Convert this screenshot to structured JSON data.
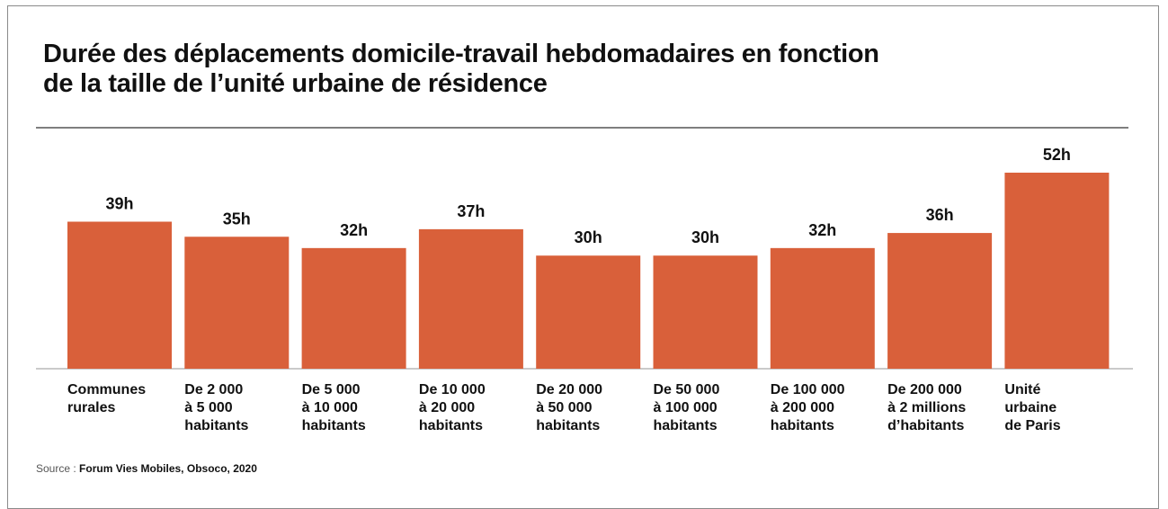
{
  "chart_data": {
    "type": "bar",
    "title": "Durée des déplacements domicile-travail hebdomadaires en fonction\nde la taille de l’unité urbaine de résidence",
    "categories": [
      "Communes\nrurales",
      "De 2 000\nà 5 000\nhabitants",
      "De 5 000\nà 10 000\nhabitants",
      "De 10 000\nà 20 000\nhabitants",
      "De 20 000\nà 50 000\nhabitants",
      "De 50 000\nà 100 000\nhabitants",
      "De 100 000\nà 200 000\nhabitants",
      "De 200 000\nà 2 millions\nd’habitants",
      "Unité\nurbaine\nde Paris"
    ],
    "values": [
      39,
      35,
      32,
      37,
      30,
      30,
      32,
      36,
      52
    ],
    "value_labels": [
      "39h",
      "35h",
      "32h",
      "37h",
      "30h",
      "30h",
      "32h",
      "36h",
      "52h"
    ],
    "color": "#d9603a",
    "source_label": "Source :",
    "source": "Forum Vies Mobiles, Obsoco, 2020"
  }
}
